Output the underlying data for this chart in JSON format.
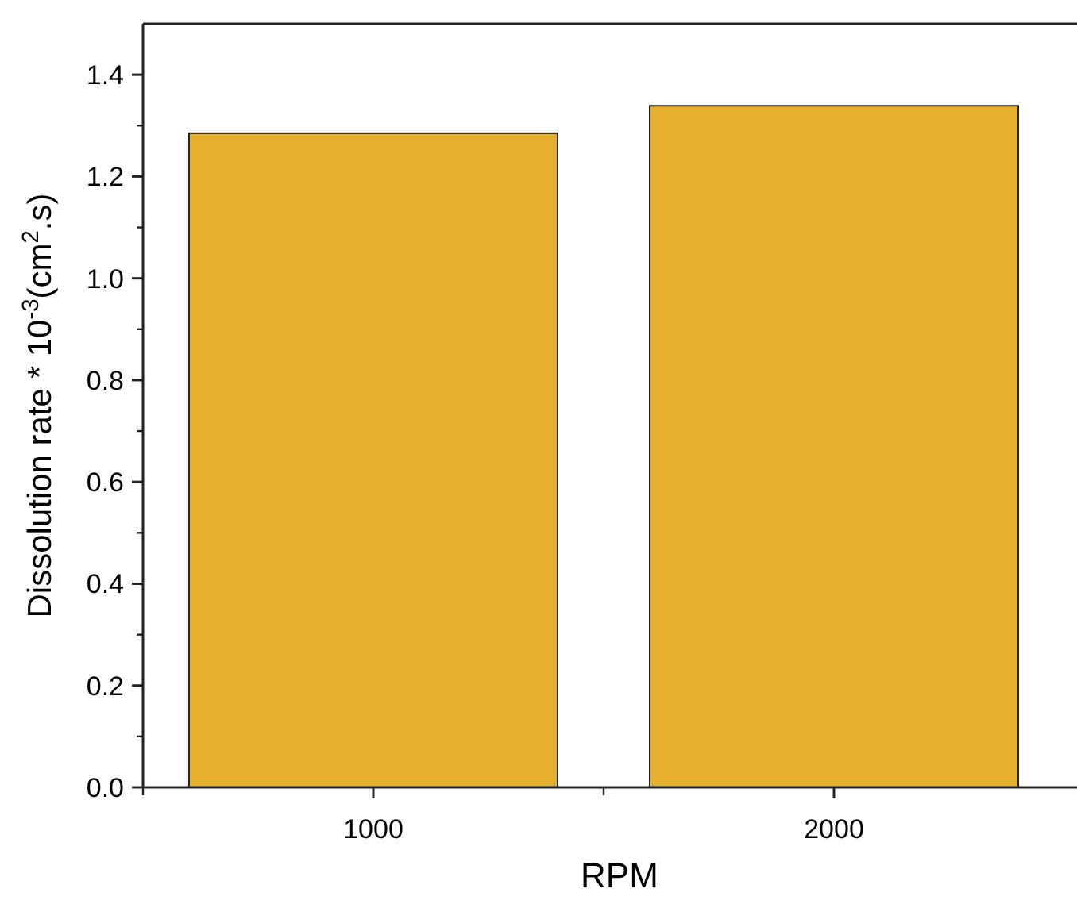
{
  "chart_data": {
    "type": "bar",
    "xlabel": "RPM",
    "ylabel": "Dissolution rate * 10$^{-3}$(cm$^{2}$.s)",
    "categories": [
      "1000",
      "2000"
    ],
    "values": [
      1.285,
      1.339
    ],
    "color": "#e6af2e",
    "ylim": [
      0,
      1.5
    ],
    "yticks": [
      {
        "value": 0,
        "label": "0.0"
      },
      {
        "value": 0.2,
        "label": "0.2"
      },
      {
        "value": 0.4,
        "label": "0.4"
      },
      {
        "value": 0.6,
        "label": "0.6"
      },
      {
        "value": 0.8,
        "label": "0.8"
      },
      {
        "value": 1.0,
        "label": "1.0"
      },
      {
        "value": 1.2,
        "label": "1.2"
      },
      {
        "value": 1.4,
        "label": "1.4"
      }
    ]
  }
}
